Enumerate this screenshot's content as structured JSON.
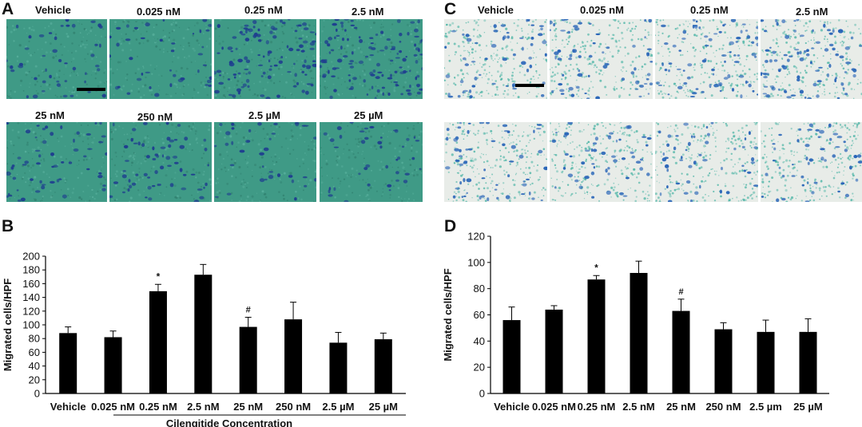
{
  "panels": {
    "A": {
      "letter": "A",
      "labels": [
        "Vehicle",
        "0.025 nM",
        "0.25 nM",
        "2.5 nM",
        "25 nM",
        "250 nM",
        "2.5 µM",
        "25 µM"
      ],
      "background_color": "#3f9a86",
      "cell_color": "#1f3f8f"
    },
    "C": {
      "letter": "C",
      "labels": [
        "Vehicle",
        "0.025 nM",
        "0.25 nM",
        "2.5 nM"
      ],
      "background_color": "#e8ece8",
      "cell_color": "#2a66b8",
      "speck_color": "#3fb0a0"
    },
    "B": {
      "letter": "B"
    },
    "D": {
      "letter": "D"
    }
  },
  "chart_data": [
    {
      "panel": "B",
      "type": "bar",
      "categories": [
        "Vehicle",
        "0.025 nM",
        "0.25 nM",
        "2.5 nM",
        "25 nM",
        "250 nM",
        "2.5 µM",
        "25 µM"
      ],
      "values": [
        88,
        82,
        149,
        173,
        97,
        108,
        74,
        79
      ],
      "errors": [
        9,
        9,
        10,
        15,
        14,
        25,
        15,
        9
      ],
      "annotations": [
        {
          "category": "0.25 nM",
          "text": "*"
        },
        {
          "category": "25 nM",
          "text": "#"
        }
      ],
      "ylabel": "Migrated cells/HPF",
      "xlabel": "Cilengitide  Concentration",
      "ylim": [
        0,
        200
      ],
      "yticks": [
        0,
        20,
        40,
        60,
        80,
        100,
        120,
        140,
        160,
        180,
        200
      ],
      "bar_color": "#000000",
      "grid": false
    },
    {
      "panel": "D",
      "type": "bar",
      "categories": [
        "Vehicle",
        "0.025 nM",
        "0.25 nM",
        "2.5 nM",
        "25 nM",
        "250 nM",
        "2.5 µm",
        "25 µM"
      ],
      "values": [
        56,
        64,
        87,
        92,
        63,
        49,
        47,
        47
      ],
      "errors": [
        10,
        3,
        3,
        9,
        9,
        5,
        9,
        10
      ],
      "annotations": [
        {
          "category": "0.25 nM",
          "text": "*"
        },
        {
          "category": "25 nM",
          "text": "#"
        }
      ],
      "ylabel": "Migrated cells/HPF",
      "ylim": [
        0,
        120
      ],
      "yticks": [
        0,
        20,
        40,
        60,
        80,
        100,
        120
      ],
      "bar_color": "#000000",
      "grid": false
    }
  ]
}
